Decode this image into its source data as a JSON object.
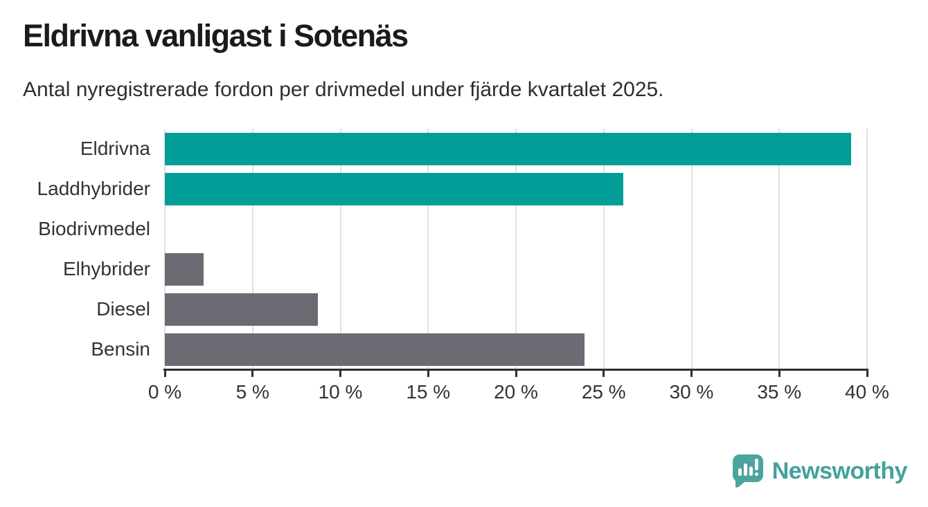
{
  "header": {
    "title": "Eldrivna vanligast i Sotenäs",
    "subtitle": "Antal nyregistrerade fordon per drivmedel under fjärde kvartalet 2025."
  },
  "chart_data": {
    "type": "bar",
    "orientation": "horizontal",
    "title": "Eldrivna vanligast i Sotenäs",
    "subtitle": "Antal nyregistrerade fordon per drivmedel under fjärde kvartalet 2025.",
    "categories": [
      "Eldrivna",
      "Laddhybrider",
      "Biodrivmedel",
      "Elhybrider",
      "Diesel",
      "Bensin"
    ],
    "values": [
      39.1,
      26.1,
      0,
      2.2,
      8.7,
      23.9
    ],
    "unit": "%",
    "bar_colors": [
      "#009E96",
      "#009E96",
      "#6C6A72",
      "#6C6A72",
      "#6C6A72",
      "#6C6A72"
    ],
    "xlim": [
      0,
      40
    ],
    "x_ticks": [
      0,
      5,
      10,
      15,
      20,
      25,
      30,
      35,
      40
    ],
    "x_tick_labels": [
      "0 %",
      "5 %",
      "10 %",
      "15 %",
      "20 %",
      "25 %",
      "30 %",
      "35 %",
      "40 %"
    ],
    "grid": "vertical-gridlines",
    "legend": "none"
  },
  "footer": {
    "brand": "Newsworthy"
  },
  "colors": {
    "highlight_teal": "#009E96",
    "neutral_gray": "#6C6A72",
    "gridline": "#E1E1E1",
    "axis": "#2D2D2D",
    "title_text": "#1B1B1B",
    "body_text": "#333333",
    "brand_teal": "#44A19A",
    "background": "#FFFFFF"
  },
  "icons": {
    "logo": "newsworthy-speech-bubble-bar-chart-icon"
  }
}
